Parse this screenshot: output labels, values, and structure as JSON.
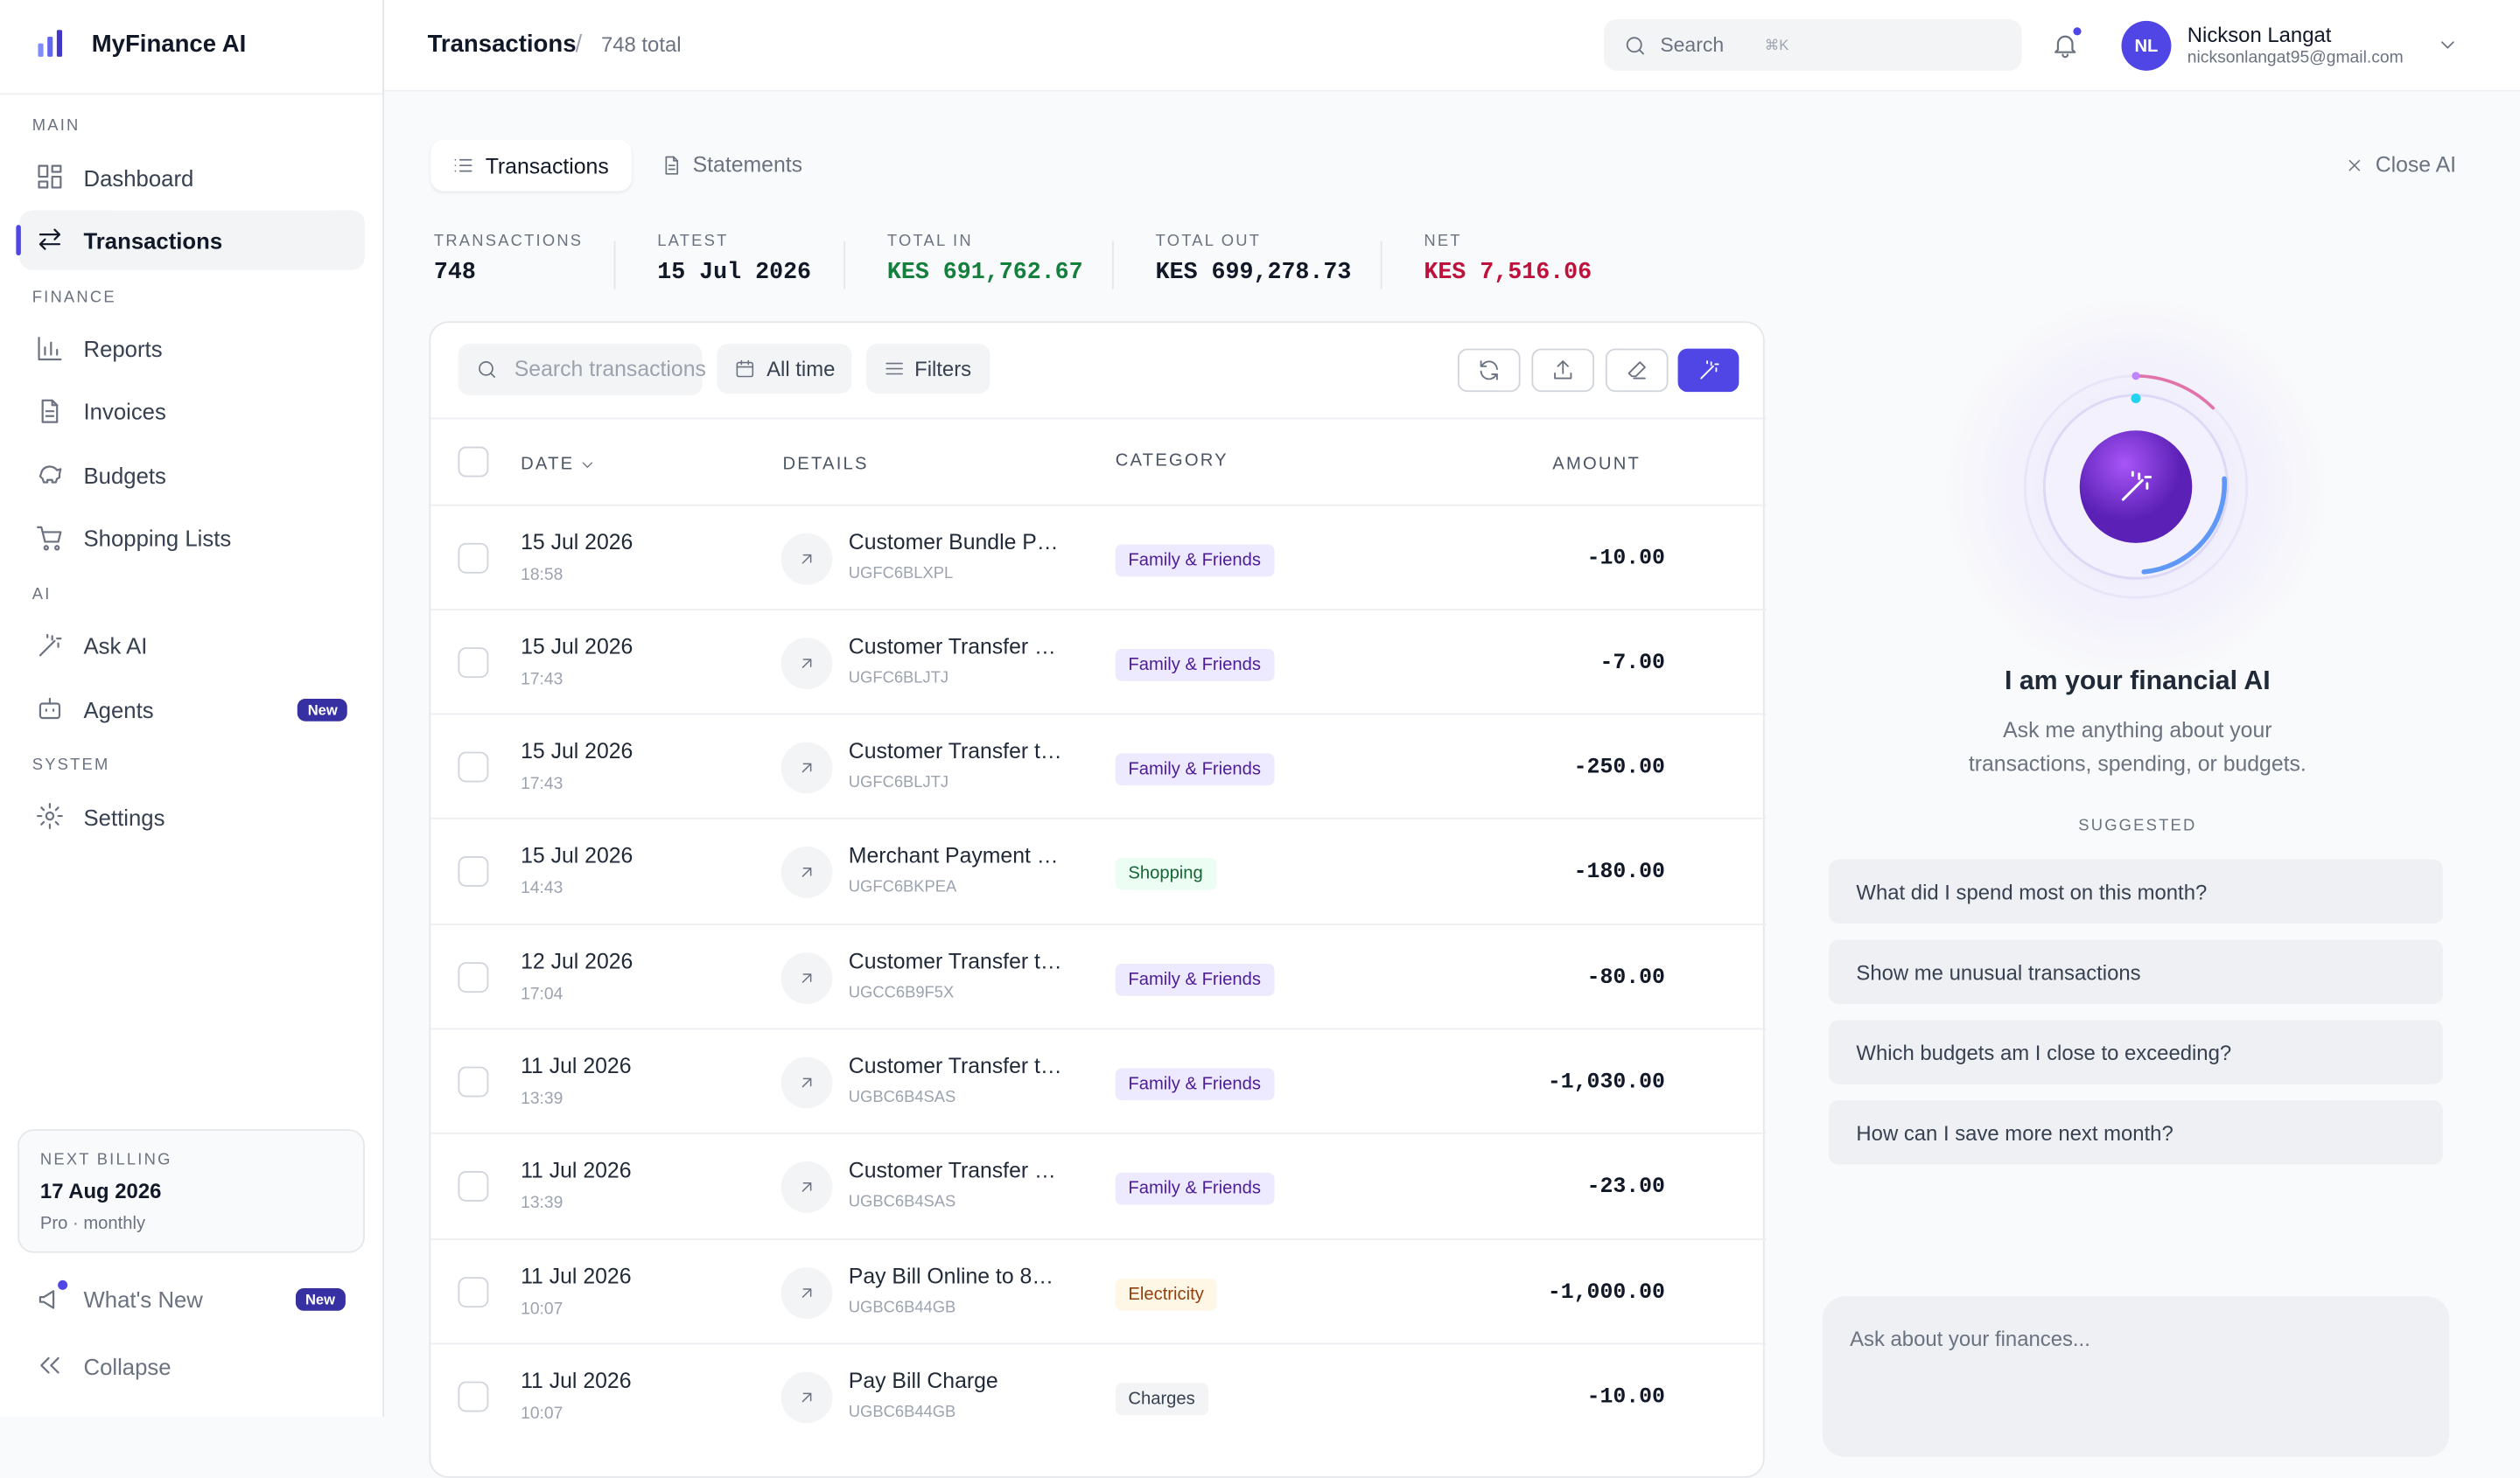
{
  "sidebar": {
    "brand": "MyFinance AI",
    "sections": [
      {
        "label": "MAIN",
        "items": [
          {
            "label": "Dashboard"
          },
          {
            "label": "Transactions",
            "active": true
          }
        ]
      },
      {
        "label": "FINANCE",
        "items": [
          {
            "label": "Reports"
          },
          {
            "label": "Invoices"
          },
          {
            "label": "Budgets"
          },
          {
            "label": "Shopping Lists"
          }
        ]
      },
      {
        "label": "AI",
        "items": [
          {
            "label": "Ask AI"
          },
          {
            "label": "Agents",
            "badge": "New"
          }
        ]
      },
      {
        "label": "SYSTEM",
        "items": [
          {
            "label": "Settings"
          }
        ]
      }
    ],
    "billing": {
      "label": "NEXT BILLING",
      "date": "17 Aug 2026",
      "plan": "Pro · monthly"
    },
    "whats_new": {
      "label": "What's New",
      "badge": "New"
    },
    "collapse": "Collapse"
  },
  "header": {
    "title": "Transactions",
    "separator": "/",
    "subtitle": "748 total",
    "search": "Search",
    "shortcut": "⌘K",
    "user": {
      "initials": "NL",
      "name": "Nickson Langat",
      "email": "nicksonlangat95@gmail.com"
    }
  },
  "tabs": [
    "Transactions",
    "Statements"
  ],
  "close_ai": "Close AI",
  "stats": [
    {
      "label": "TRANSACTIONS",
      "value": "748",
      "color": "#111827"
    },
    {
      "label": "LATEST",
      "value": "15 Jul 2026",
      "color": "#111827"
    },
    {
      "label": "TOTAL IN",
      "value": "KES 691,762.67",
      "color": "#15803d"
    },
    {
      "label": "TOTAL OUT",
      "value": "KES 699,278.73",
      "color": "#111827"
    },
    {
      "label": "NET",
      "value": "KES 7,516.06",
      "color": "#be123c"
    }
  ],
  "table": {
    "search": "Search transactions",
    "range": "All time",
    "filters": "Filters",
    "columns": [
      "DATE",
      "DETAILS",
      "CATEGORY",
      "AMOUNT"
    ],
    "rows": [
      {
        "date": "15 Jul 2026",
        "time": "18:58",
        "details": "Customer Bundle P…",
        "ref": "UGFC6BLXPL",
        "category": "Family & Friends",
        "color": "#4c1d95",
        "bg": "#ede9fe",
        "amount": "-10.00"
      },
      {
        "date": "15 Jul 2026",
        "time": "17:43",
        "details": "Customer Transfer …",
        "ref": "UGFC6BLJTJ",
        "category": "Family & Friends",
        "color": "#4c1d95",
        "bg": "#ede9fe",
        "amount": "-7.00"
      },
      {
        "date": "15 Jul 2026",
        "time": "17:43",
        "details": "Customer Transfer t…",
        "ref": "UGFC6BLJTJ",
        "category": "Family & Friends",
        "color": "#4c1d95",
        "bg": "#ede9fe",
        "amount": "-250.00"
      },
      {
        "date": "15 Jul 2026",
        "time": "14:43",
        "details": "Merchant Payment …",
        "ref": "UGFC6BKPEA",
        "category": "Shopping",
        "color": "#166534",
        "bg": "#ecfdf3",
        "amount": "-180.00"
      },
      {
        "date": "12 Jul 2026",
        "time": "17:04",
        "details": "Customer Transfer t…",
        "ref": "UGCC6B9F5X",
        "category": "Family & Friends",
        "color": "#4c1d95",
        "bg": "#ede9fe",
        "amount": "-80.00"
      },
      {
        "date": "11 Jul 2026",
        "time": "13:39",
        "details": "Customer Transfer t…",
        "ref": "UGBC6B4SAS",
        "category": "Family & Friends",
        "color": "#4c1d95",
        "bg": "#ede9fe",
        "amount": "-1,030.00"
      },
      {
        "date": "11 Jul 2026",
        "time": "13:39",
        "details": "Customer Transfer …",
        "ref": "UGBC6B4SAS",
        "category": "Family & Friends",
        "color": "#4c1d95",
        "bg": "#ede9fe",
        "amount": "-23.00"
      },
      {
        "date": "11 Jul 2026",
        "time": "10:07",
        "details": "Pay Bill Online to 8…",
        "ref": "UGBC6B44GB",
        "category": "Electricity",
        "color": "#92400e",
        "bg": "#fef7e6",
        "amount": "-1,000.00"
      },
      {
        "date": "11 Jul 2026",
        "time": "10:07",
        "details": "Pay Bill Charge",
        "ref": "UGBC6B44GB",
        "category": "Charges",
        "color": "#374151",
        "bg": "#f3f4f6",
        "amount": "-10.00"
      }
    ]
  },
  "ai": {
    "title": "I am your financial AI",
    "description": "Ask me anything about your transactions, spending, or budgets.",
    "suggested_label": "SUGGESTED",
    "suggestions": [
      "What did I spend most on this month?",
      "Show me unusual transactions",
      "Which budgets am I close to exceeding?",
      "How can I save more next month?"
    ],
    "input": "Ask about your finances..."
  }
}
